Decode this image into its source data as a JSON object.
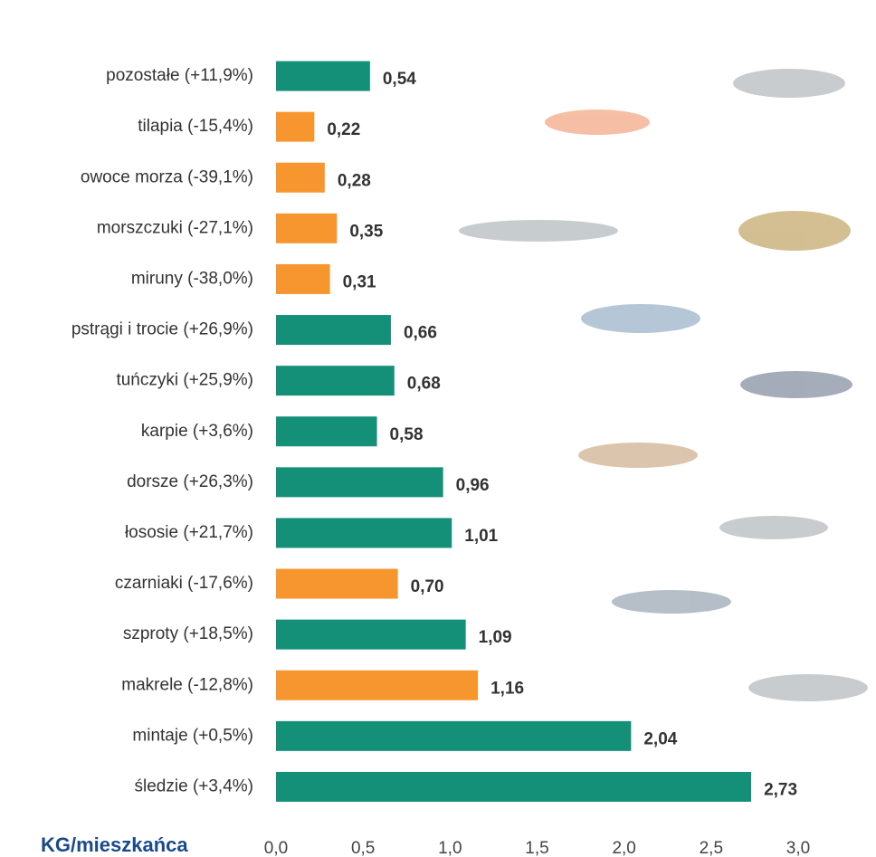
{
  "chart_data": {
    "type": "bar",
    "orientation": "horizontal",
    "x_label": "KG/mieszkańca",
    "categories": [
      "pozostałe (+11,9%)",
      "tilapia (-15,4%)",
      "owoce morza (-39,1%)",
      "morszczuki (-27,1%)",
      "miruny (-38,0%)",
      "pstrągi i trocie (+26,9%)",
      "tuńczyki (+25,9%)",
      "karpie (+3,6%)",
      "dorsze (+26,3%)",
      "łososie (+21,7%)",
      "czarniaki (-17,6%)",
      "szproty (+18,5%)",
      "makrele (-12,8%)",
      "mintaje (+0,5%)",
      "śledzie (+3,4%)"
    ],
    "values": [
      0.54,
      0.22,
      0.28,
      0.35,
      0.31,
      0.66,
      0.68,
      0.58,
      0.96,
      1.01,
      0.7,
      1.09,
      1.16,
      2.04,
      2.73
    ],
    "value_labels": [
      "0,54",
      "0,22",
      "0,28",
      "0,35",
      "0,31",
      "0,66",
      "0,68",
      "0,58",
      "0,96",
      "1,01",
      "0,70",
      "1,09",
      "1,16",
      "2,04",
      "2,73"
    ],
    "colors": [
      "#149079",
      "#f7962f",
      "#f7962f",
      "#f7962f",
      "#f7962f",
      "#149079",
      "#149079",
      "#149079",
      "#149079",
      "#149079",
      "#f7962f",
      "#149079",
      "#f7962f",
      "#149079",
      "#149079"
    ],
    "xlim": [
      0,
      3
    ],
    "xticks": [
      {
        "value": 0,
        "label": "0,0"
      },
      {
        "value": 0.5,
        "label": "0,5"
      },
      {
        "value": 1,
        "label": "1,0"
      },
      {
        "value": 1.5,
        "label": "1,5"
      },
      {
        "value": 2,
        "label": "2,0"
      },
      {
        "value": 2.5,
        "label": "2,5"
      },
      {
        "value": 3,
        "label": "3,0"
      }
    ],
    "grid": false
  }
}
